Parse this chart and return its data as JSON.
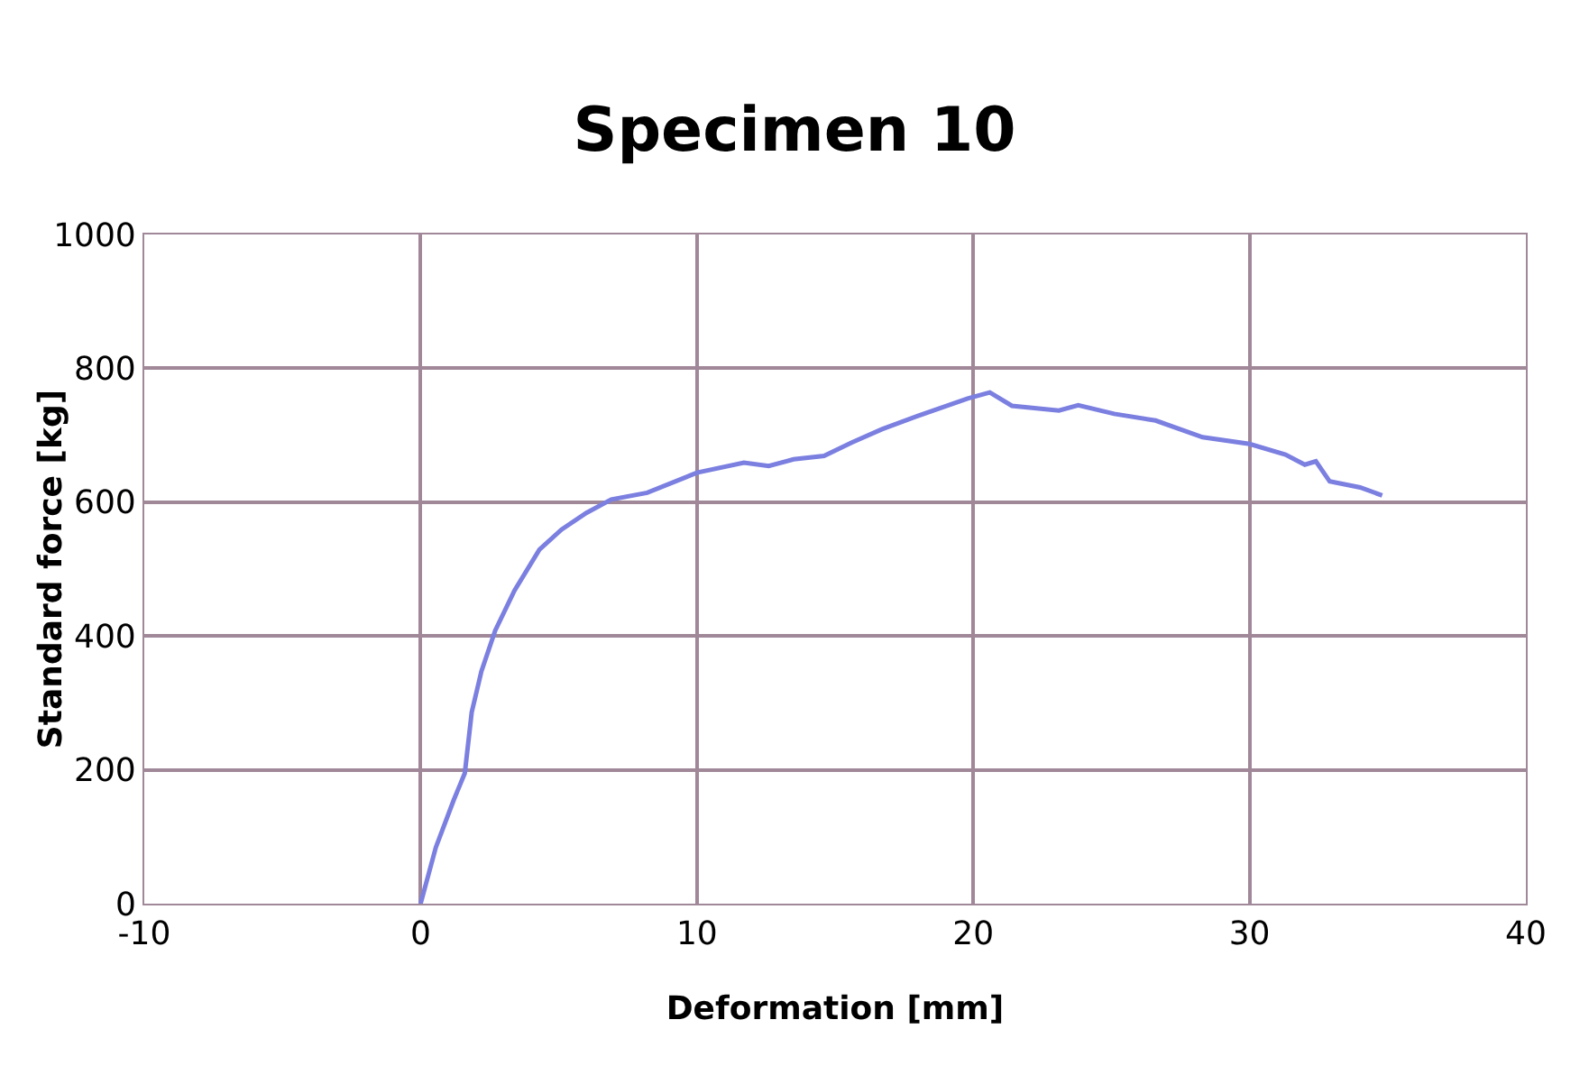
{
  "chart_data": {
    "type": "line",
    "title": "Specimen 10",
    "xlabel": "Deformation [mm]",
    "ylabel": "Standard force [kg]",
    "x": [
      0,
      0.55,
      1.2,
      1.6,
      1.85,
      2.2,
      2.7,
      3.4,
      4.3,
      5.1,
      6.0,
      6.9,
      8.2,
      10,
      11.7,
      12.6,
      13.5,
      14.6,
      15.6,
      16.7,
      18.0,
      19.8,
      20.6,
      21.4,
      23.1,
      23.8,
      25.1,
      26.6,
      28.3,
      30,
      31.3,
      32.0,
      32.4,
      32.9,
      34.0,
      34.8
    ],
    "series": [
      {
        "color": "#7b7fe0",
        "values": [
          0,
          84,
          155,
          195,
          286,
          347,
          408,
          468,
          529,
          559,
          584,
          604,
          614,
          644,
          659,
          654,
          664,
          669,
          689,
          709,
          729,
          755,
          764,
          744,
          737,
          745,
          732,
          722,
          697,
          687,
          671,
          656,
          661,
          631,
          622,
          610
        ]
      }
    ],
    "xlim": [
      -10,
      40
    ],
    "xticks": [
      -10,
      0,
      10,
      20,
      30,
      40
    ],
    "ylim": [
      0,
      1000
    ],
    "yticks": [
      0,
      200,
      400,
      600,
      800,
      1000
    ],
    "grid": true,
    "marker": "none",
    "line_style": "solid"
  }
}
